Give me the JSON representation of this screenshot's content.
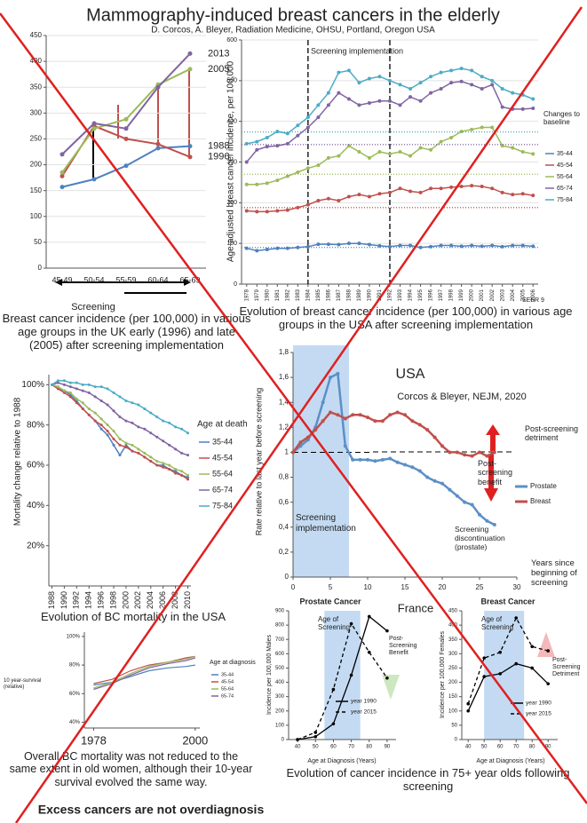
{
  "header": {
    "title": "Mammography-induced breast cancers in the elderly",
    "authors": "D. Corcos, A. Bleyer, Radiation Medicine, OHSU, Portland, Oregon USA"
  },
  "conclusion": "Excess cancers are not overdiagnosis",
  "chart_data": [
    {
      "type": "line",
      "categories": [
        "45-49",
        "50-54",
        "55-59",
        "60-64",
        "65-69"
      ],
      "series": [
        {
          "name": "1988",
          "color": "#4f81bd",
          "values": [
            157,
            172,
            198,
            232,
            236
          ]
        },
        {
          "name": "1996",
          "color": "#c0504d",
          "values": [
            178,
            275,
            250,
            240,
            215
          ]
        },
        {
          "name": "2005",
          "color": "#9bbb59",
          "values": [
            185,
            270,
            288,
            355,
            385
          ]
        },
        {
          "name": "2013",
          "color": "#8064a2",
          "values": [
            220,
            280,
            270,
            350,
            415
          ]
        }
      ],
      "ylim": [
        0,
        450
      ],
      "yticks": [
        0,
        50,
        100,
        150,
        200,
        250,
        300,
        350,
        400,
        450
      ],
      "grid": true,
      "x_label": "Screening",
      "caption": "Breast cancer incidence (per 100,000) in various age groups in the UK early (1996) and late (2005) after screening implementation"
    },
    {
      "type": "line",
      "x": [
        1978,
        1979,
        1980,
        1981,
        1982,
        1983,
        1984,
        1985,
        1986,
        1987,
        1988,
        1989,
        1990,
        1991,
        1992,
        1993,
        1994,
        1995,
        1996,
        1997,
        1998,
        1999,
        2000,
        2001,
        2002,
        2003,
        2004,
        2005,
        2006
      ],
      "xlim": [
        1977.5,
        2006.5
      ],
      "xticks": [
        1978,
        1979,
        1980,
        1981,
        1982,
        1983,
        1984,
        1985,
        1986,
        1987,
        1988,
        1989,
        1990,
        1991,
        1992,
        1993,
        1994,
        1995,
        1996,
        1997,
        1998,
        1999,
        2000,
        2001,
        2002,
        2003,
        2004,
        2005,
        2006
      ],
      "series": [
        {
          "name": "35-44",
          "color": "#4f81bd",
          "baseline": 90,
          "values": [
            88,
            82,
            85,
            88,
            88,
            90,
            92,
            98,
            98,
            97,
            100,
            100,
            97,
            94,
            92,
            95,
            95,
            90,
            92,
            95,
            95,
            93,
            95,
            93,
            95,
            92,
            95,
            95,
            93
          ]
        },
        {
          "name": "45-54",
          "color": "#c0504d",
          "baseline": 188,
          "values": [
            180,
            178,
            178,
            180,
            182,
            188,
            195,
            205,
            210,
            205,
            215,
            220,
            215,
            222,
            225,
            235,
            228,
            225,
            235,
            235,
            238,
            240,
            242,
            240,
            235,
            225,
            220,
            222,
            218
          ]
        },
        {
          "name": "55-64",
          "color": "#9bbb59",
          "baseline": 270,
          "values": [
            245,
            245,
            248,
            255,
            265,
            275,
            285,
            292,
            310,
            315,
            340,
            325,
            310,
            325,
            320,
            325,
            315,
            335,
            330,
            350,
            360,
            375,
            380,
            385,
            385,
            340,
            335,
            325,
            320
          ]
        },
        {
          "name": "65-74",
          "color": "#8064a2",
          "baseline": 343,
          "values": [
            300,
            330,
            338,
            340,
            345,
            365,
            385,
            410,
            440,
            470,
            455,
            440,
            445,
            450,
            450,
            440,
            460,
            450,
            470,
            480,
            495,
            498,
            490,
            480,
            490,
            435,
            430,
            430,
            432
          ]
        },
        {
          "name": "75-84",
          "color": "#4bacc6",
          "baseline": 374,
          "values": [
            345,
            350,
            360,
            375,
            370,
            390,
            410,
            440,
            470,
            520,
            525,
            495,
            505,
            510,
            500,
            490,
            480,
            495,
            510,
            520,
            525,
            530,
            525,
            510,
            500,
            480,
            470,
            465,
            455
          ]
        }
      ],
      "ylim": [
        0,
        600
      ],
      "yticks": [
        0,
        100,
        200,
        300,
        400,
        500,
        600
      ],
      "grid": true,
      "screening_years": [
        1984,
        1992
      ],
      "y_label": "Age-adjusted breast cancer incidence, per 100,000",
      "annotations": [
        "Screening implementation",
        "Changes to baseline",
        "SEER 9"
      ],
      "caption": "Evolution of breast cancer incidence (per 100,000) in various age groups in the USA after screening implementation"
    },
    {
      "type": "line",
      "x": [
        1988,
        1989,
        1990,
        1991,
        1992,
        1993,
        1994,
        1995,
        1996,
        1997,
        1998,
        1999,
        2000,
        2001,
        2002,
        2003,
        2004,
        2005,
        2006,
        2007,
        2008,
        2009,
        2010
      ],
      "xlim": [
        1987.5,
        2010.5
      ],
      "xticks": [
        1988,
        1990,
        1992,
        1994,
        1996,
        1998,
        2000,
        2002,
        2004,
        2006,
        2008,
        2010
      ],
      "series": [
        {
          "name": "35-44",
          "color": "#4f81bd",
          "values": [
            100,
            98,
            97,
            95,
            92,
            88,
            85,
            82,
            78,
            75,
            70,
            65,
            70,
            67,
            66,
            64,
            62,
            60,
            60,
            58,
            57,
            55,
            54
          ]
        },
        {
          "name": "45-54",
          "color": "#c0504d",
          "values": [
            100,
            98,
            96,
            94,
            91,
            88,
            85,
            82,
            80,
            77,
            73,
            70,
            69,
            67,
            66,
            64,
            62,
            60,
            59,
            58,
            56,
            55,
            53
          ]
        },
        {
          "name": "55-64",
          "color": "#9bbb59",
          "values": [
            100,
            99,
            97,
            96,
            93,
            91,
            88,
            86,
            83,
            80,
            77,
            73,
            71,
            70,
            68,
            66,
            64,
            62,
            61,
            60,
            58,
            57,
            55
          ]
        },
        {
          "name": "65-74",
          "color": "#8064a2",
          "values": [
            100,
            101,
            100,
            99,
            98,
            97,
            96,
            94,
            92,
            90,
            87,
            84,
            82,
            81,
            79,
            78,
            76,
            74,
            72,
            70,
            68,
            66,
            65
          ]
        },
        {
          "name": "75-84",
          "color": "#4bacc6",
          "values": [
            100,
            102,
            102,
            101,
            101,
            100,
            100,
            99,
            99,
            98,
            96,
            94,
            92,
            91,
            90,
            88,
            86,
            84,
            82,
            81,
            79,
            78,
            76
          ]
        }
      ],
      "ylim": [
        0,
        105
      ],
      "yticks": [
        {
          "value": 100,
          "label": "100%"
        },
        {
          "value": 80,
          "label": "80%"
        },
        {
          "value": 60,
          "label": "60%"
        },
        {
          "value": 40,
          "label": "40%"
        },
        {
          "value": 20,
          "label": "20%"
        }
      ],
      "legend_title": "Age at death",
      "y_label": "Mortality change relative to 1988",
      "caption": "Evolution of BC mortality in the USA"
    },
    {
      "type": "line",
      "x": [
        1978,
        1982,
        1986,
        1990,
        1994,
        1998,
        2000
      ],
      "xlim": [
        1976,
        2001
      ],
      "xticks": [
        1978,
        2000
      ],
      "series": [
        {
          "name": "35-44",
          "color": "#4f81bd",
          "values": [
            66,
            68,
            72,
            76,
            78,
            79,
            80
          ]
        },
        {
          "name": "45-54",
          "color": "#c0504d",
          "values": [
            67,
            70,
            76,
            80,
            82,
            85,
            86
          ]
        },
        {
          "name": "55-64",
          "color": "#9bbb59",
          "values": [
            64,
            68,
            74,
            79,
            82,
            84,
            86
          ]
        },
        {
          "name": "65-74",
          "color": "#8064a2",
          "values": [
            63,
            67,
            73,
            78,
            81,
            83,
            85
          ]
        }
      ],
      "ylim": [
        36,
        103
      ],
      "yticks": [
        {
          "value": 100,
          "label": "100%"
        },
        {
          "value": 80,
          "label": "80%"
        },
        {
          "value": 60,
          "label": "60%"
        },
        {
          "value": 40,
          "label": "40%"
        }
      ],
      "legend_title": "Age at diagnosis",
      "y_label": "10 year-survival (relative)",
      "caption": "Overall BC mortality was not reduced to the same extent in old women, although their 10-year survival evolved the same way."
    },
    {
      "type": "line",
      "title": "USA",
      "source": "Corcos & Bleyer, NEJM, 2020",
      "x": [
        0,
        1,
        2,
        3,
        4,
        5,
        6,
        7,
        8,
        9,
        10,
        11,
        12,
        13,
        14,
        15,
        16,
        17,
        18,
        19,
        20,
        21,
        22,
        23,
        24,
        25,
        26,
        27
      ],
      "xlim": [
        0,
        30
      ],
      "xticks": [
        0,
        5,
        10,
        15,
        20,
        25,
        30
      ],
      "series": [
        {
          "name": "Prostate",
          "color": "#5b8fc7",
          "values": [
            1.0,
            1.05,
            1.1,
            1.2,
            1.4,
            1.6,
            1.63,
            1.05,
            0.94,
            0.94,
            0.94,
            0.93,
            0.94,
            0.95,
            0.92,
            0.9,
            0.88,
            0.85,
            0.8,
            0.77,
            0.75,
            0.7,
            0.65,
            0.6,
            0.58,
            0.5,
            0.45,
            0.42
          ]
        },
        {
          "name": "Breast",
          "color": "#c0504d",
          "values": [
            1.0,
            1.08,
            1.12,
            1.18,
            1.25,
            1.32,
            1.3,
            1.27,
            1.3,
            1.3,
            1.28,
            1.25,
            1.25,
            1.3,
            1.32,
            1.3,
            1.25,
            1.22,
            1.18,
            1.12,
            1.05,
            1.0,
            1.0,
            0.98,
            0.97,
            1.0,
            0.97,
            1.0
          ]
        }
      ],
      "ylim": [
        0,
        1.8
      ],
      "yticks": [
        0,
        {
          "value": 0.2,
          "label": "0,2"
        },
        {
          "value": 0.4,
          "label": "0,4"
        },
        {
          "value": 0.6,
          "label": "0,6"
        },
        {
          "value": 0.8,
          "label": "0,8"
        },
        1,
        {
          "value": 1.2,
          "label": "1,2"
        },
        {
          "value": 1.4,
          "label": "1,4"
        },
        {
          "value": 1.6,
          "label": "1,6"
        },
        {
          "value": 1.8,
          "label": "1,8"
        }
      ],
      "shaded_x": [
        0,
        7.5
      ],
      "reference_y": 1,
      "annotations": [
        "Post-screening detriment",
        "Post-screening benefit",
        "Screening implementation",
        "Screening discontinuation (prostate)"
      ],
      "x_label": "Years since beginning of screening",
      "y_label": "Rate relative to last year before screening"
    },
    {
      "type": "line",
      "group_label": "France",
      "title": "Prostate Cancer",
      "x": [
        40,
        50,
        60,
        70,
        80,
        90
      ],
      "xlim": [
        35,
        95
      ],
      "xticks": [
        40,
        50,
        60,
        70,
        80,
        90
      ],
      "series": [
        {
          "name": "year 1990",
          "color": "#000000",
          "line_style": "solid",
          "values": [
            0,
            20,
            110,
            450,
            860,
            760
          ]
        },
        {
          "name": "year 2015",
          "color": "#000000",
          "line_style": "dashed",
          "values": [
            0,
            50,
            350,
            810,
            610,
            430
          ]
        }
      ],
      "ylim": [
        0,
        900
      ],
      "yticks": [
        0,
        100,
        200,
        300,
        400,
        500,
        600,
        700,
        800,
        900
      ],
      "shaded_x": [
        55,
        75
      ],
      "annotations": [
        "Age of Screening",
        "Post-Screening Benefit"
      ],
      "x_label": "Age at Diagnosis (Years)",
      "y_label": "Incidence per 100,000 Males",
      "caption": "Evolution of cancer incidence in 75+ year olds following screening"
    },
    {
      "type": "line",
      "title": "Breast Cancer",
      "x": [
        40,
        50,
        60,
        70,
        80,
        90
      ],
      "xlim": [
        36,
        96
      ],
      "xticks": [
        40,
        50,
        60,
        70,
        80,
        90
      ],
      "series": [
        {
          "name": "year 1990",
          "color": "#000000",
          "line_style": "solid",
          "values": [
            100,
            220,
            230,
            265,
            250,
            195
          ]
        },
        {
          "name": "year 2015",
          "color": "#000000",
          "line_style": "dashed",
          "values": [
            125,
            285,
            305,
            425,
            325,
            310
          ]
        }
      ],
      "ylim": [
        0,
        450
      ],
      "yticks": [
        0,
        50,
        100,
        150,
        200,
        250,
        300,
        350,
        400,
        450
      ],
      "shaded_x": [
        50,
        75
      ],
      "annotations": [
        "Age of Screening",
        "Post-Screening Detriment"
      ],
      "x_label": "Age at Diagnosis (Years)",
      "y_label": "Incidence per 100,000 Females"
    }
  ]
}
